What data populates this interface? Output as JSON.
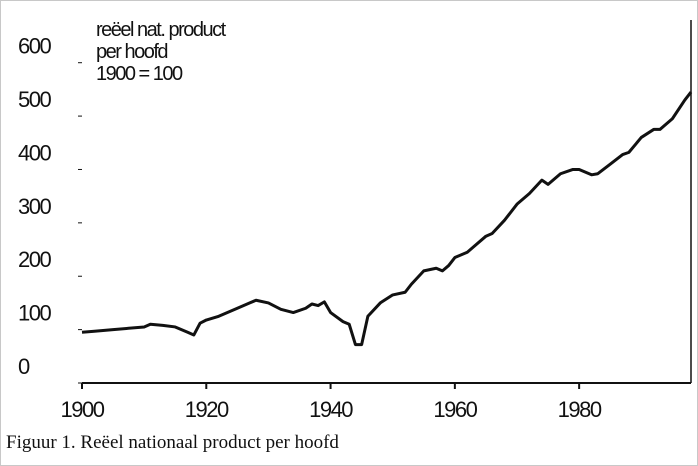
{
  "chart_data": {
    "type": "line",
    "annotation": [
      "reëel nat. product",
      "per hoofd",
      "1900 = 100"
    ],
    "caption": "Figuur 1. Reëel nationaal product per hoofd",
    "x": [
      1900,
      1902,
      1905,
      1910,
      1911,
      1913,
      1915,
      1917,
      1918,
      1919,
      1920,
      1922,
      1925,
      1927,
      1928,
      1930,
      1932,
      1934,
      1936,
      1937,
      1938,
      1939,
      1940,
      1942,
      1943,
      1944,
      1945,
      1946,
      1948,
      1950,
      1952,
      1953,
      1955,
      1957,
      1958,
      1959,
      1960,
      1962,
      1963,
      1965,
      1966,
      1968,
      1970,
      1972,
      1974,
      1975,
      1977,
      1979,
      1980,
      1982,
      1983,
      1985,
      1987,
      1988,
      1990,
      1992,
      1993,
      1995,
      1997,
      1998
    ],
    "values": [
      95,
      97,
      100,
      105,
      110,
      108,
      105,
      95,
      90,
      112,
      118,
      125,
      140,
      150,
      155,
      150,
      138,
      132,
      140,
      148,
      145,
      152,
      132,
      115,
      110,
      72,
      72,
      125,
      150,
      165,
      170,
      185,
      210,
      215,
      210,
      220,
      235,
      245,
      255,
      275,
      280,
      305,
      335,
      355,
      380,
      372,
      392,
      400,
      400,
      390,
      392,
      410,
      428,
      432,
      460,
      475,
      475,
      495,
      530,
      545
    ],
    "color": "#111111",
    "xlim": [
      1900,
      1998
    ],
    "xticks": [
      1900,
      1920,
      1940,
      1960,
      1980
    ],
    "ylim": [
      0,
      680
    ],
    "yticks": [
      0,
      100,
      200,
      300,
      400,
      500,
      600
    ]
  }
}
